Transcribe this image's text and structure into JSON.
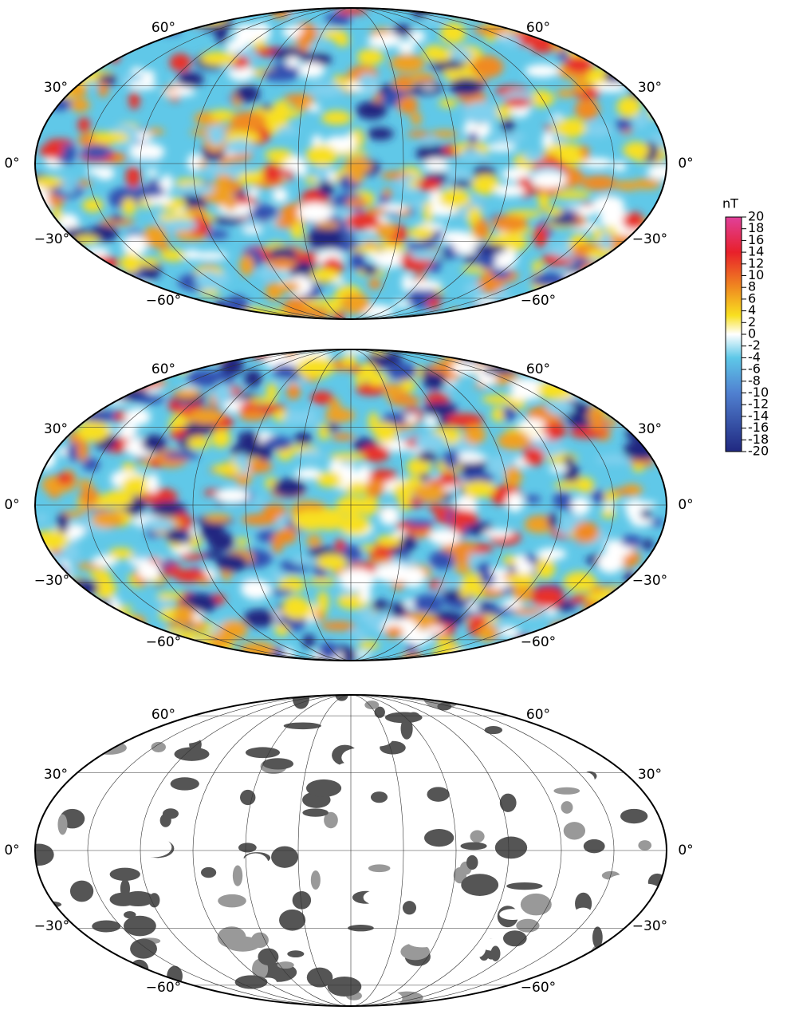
{
  "maps": [
    {
      "lat_left": [
        "60°",
        "30°",
        "0°",
        "−30°",
        "−60°"
      ],
      "lat_right": [
        "60°",
        "30°",
        "0°",
        "−30°",
        "−60°"
      ]
    },
    {
      "lat_left": [
        "60°",
        "30°",
        "0°",
        "−30°",
        "−60°"
      ],
      "lat_right": [
        "60°",
        "30°",
        "0°",
        "−30°",
        "−60°"
      ]
    },
    {
      "lat_left": [
        "60°",
        "30°",
        "0°",
        "−30°",
        "−60°"
      ],
      "lat_right": [
        "60°",
        "30°",
        "0°",
        "−30°",
        "−60°"
      ]
    }
  ],
  "colorbar": {
    "unit": "nT",
    "range": [
      -20,
      20
    ],
    "ticks": [
      20,
      18,
      16,
      14,
      12,
      10,
      8,
      6,
      4,
      2,
      0,
      -2,
      -4,
      -6,
      -8,
      -10,
      -12,
      -14,
      -16,
      -18,
      -20
    ]
  }
}
